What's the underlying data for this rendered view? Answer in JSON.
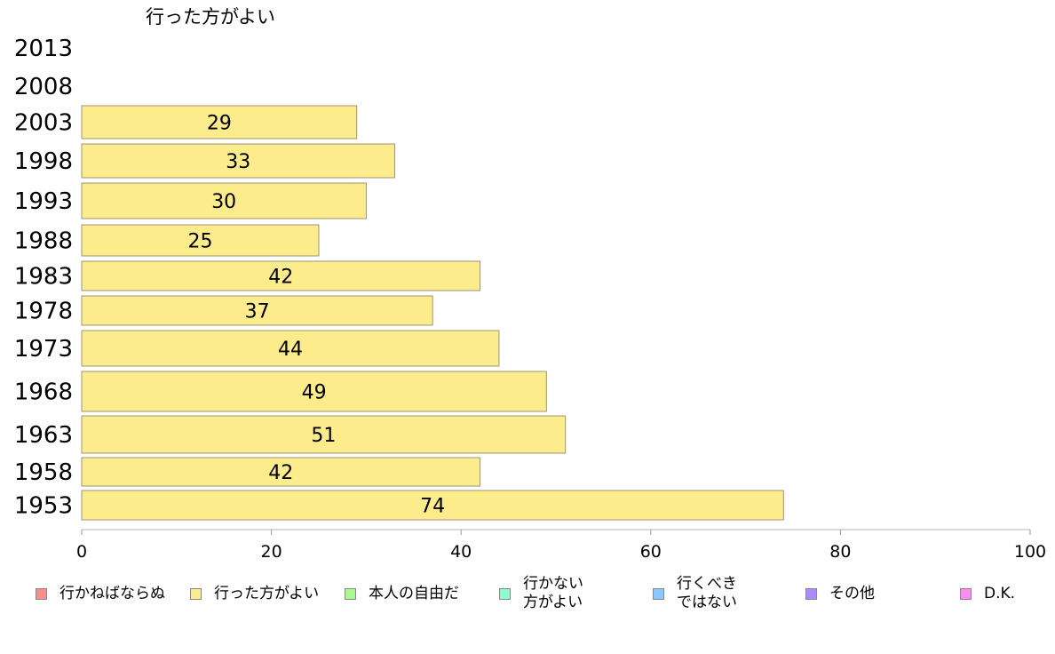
{
  "chart_data": {
    "type": "bar",
    "orientation": "horizontal",
    "title": "行った方がよい",
    "categories": [
      "1953",
      "1958",
      "1963",
      "1968",
      "1973",
      "1978",
      "1983",
      "1988",
      "1993",
      "1998",
      "2003",
      "2008",
      "2013"
    ],
    "series": [
      {
        "name": "行った方がよい",
        "color": "#fdec8c",
        "values": [
          74,
          42,
          51,
          49,
          44,
          37,
          42,
          25,
          30,
          33,
          29,
          null,
          null
        ]
      }
    ],
    "xlim": [
      0,
      100
    ],
    "xticks": [
      0,
      20,
      40,
      60,
      80,
      100
    ],
    "grid": false,
    "legend_position": "bottom"
  },
  "legend": [
    {
      "label": "行かねばならぬ",
      "color": "#fd8c8c",
      "icon": "square-swatch"
    },
    {
      "label": "行った方がよい",
      "color": "#fdec8c",
      "icon": "square-swatch"
    },
    {
      "label": "本人の自由だ",
      "color": "#a6fd8c",
      "icon": "square-swatch"
    },
    {
      "label": "行かない\n方がよい",
      "color": "#8cfdd0",
      "icon": "square-swatch"
    },
    {
      "label": "行くべき\nではない",
      "color": "#8cc8fd",
      "icon": "square-swatch"
    },
    {
      "label": "その他",
      "color": "#a98cfd",
      "icon": "square-swatch"
    },
    {
      "label": "D.K.",
      "color": "#fd8cf0",
      "icon": "square-swatch"
    }
  ]
}
